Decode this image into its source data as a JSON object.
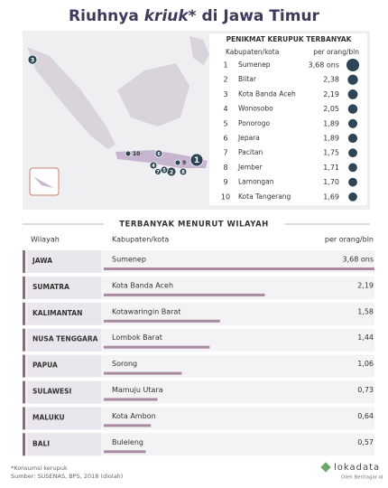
{
  "title": {
    "prefix": "Riuhnya",
    "emphasis": "kriuk*",
    "suffix": "di Jawa Timur"
  },
  "top_ten": {
    "title": "PENIKMAT KERUPUK TERBANYAK",
    "columns": [
      "Kabupaten/kota",
      "per orang/bln"
    ],
    "rows": [
      {
        "rank": "1",
        "name": "Sumenep",
        "value": 3.68,
        "label": "3,68 ons"
      },
      {
        "rank": "2",
        "name": "Blitar",
        "value": 2.38,
        "label": "2,38"
      },
      {
        "rank": "3",
        "name": "Kota Banda Aceh",
        "value": 2.19,
        "label": "2,19"
      },
      {
        "rank": "4",
        "name": "Wonosobo",
        "value": 2.05,
        "label": "2,05"
      },
      {
        "rank": "5",
        "name": "Ponorogo",
        "value": 1.89,
        "label": "1,89"
      },
      {
        "rank": "6",
        "name": "Jepara",
        "value": 1.89,
        "label": "1,89"
      },
      {
        "rank": "7",
        "name": "Pacitan",
        "value": 1.75,
        "label": "1,75"
      },
      {
        "rank": "8",
        "name": "Jember",
        "value": 1.71,
        "label": "1,71"
      },
      {
        "rank": "9",
        "name": "Lamongan",
        "value": 1.7,
        "label": "1,70"
      },
      {
        "rank": "10",
        "name": "Kota Tangerang",
        "value": 1.69,
        "label": "1,69"
      }
    ]
  },
  "regions": {
    "title": "TERBANYAK MENURUT WILAYAH",
    "columns": [
      "Wilayah",
      "Kabupaten/kota",
      "per orang/bln"
    ],
    "rows": [
      {
        "region": "JAWA",
        "name": "Sumenep",
        "value": 3.68,
        "label": "3,68 ons"
      },
      {
        "region": "SUMATRA",
        "name": "Kota Banda Aceh",
        "value": 2.19,
        "label": "2,19"
      },
      {
        "region": "KALIMANTAN",
        "name": "Kotawaringin Barat",
        "value": 1.58,
        "label": "1,58"
      },
      {
        "region": "NUSA TENGGARA",
        "name": "Lombok Barat",
        "value": 1.44,
        "label": "1,44"
      },
      {
        "region": "PAPUA",
        "name": "Sorong",
        "value": 1.06,
        "label": "1,06"
      },
      {
        "region": "SULAWESI",
        "name": "Mamuju Utara",
        "value": 0.73,
        "label": "0,73"
      },
      {
        "region": "MALUKU",
        "name": "Kota Ambon",
        "value": 0.64,
        "label": "0,64"
      },
      {
        "region": "BALI",
        "name": "Buleleng",
        "value": 0.57,
        "label": "0,57"
      }
    ]
  },
  "footer": {
    "note": "*Konsumsi kerupuk",
    "source": "Sumber: SUSENAS, BPS, 2018 (diolah)",
    "brand": "lokadata",
    "byline": "Oleh Beritagar.id"
  }
}
